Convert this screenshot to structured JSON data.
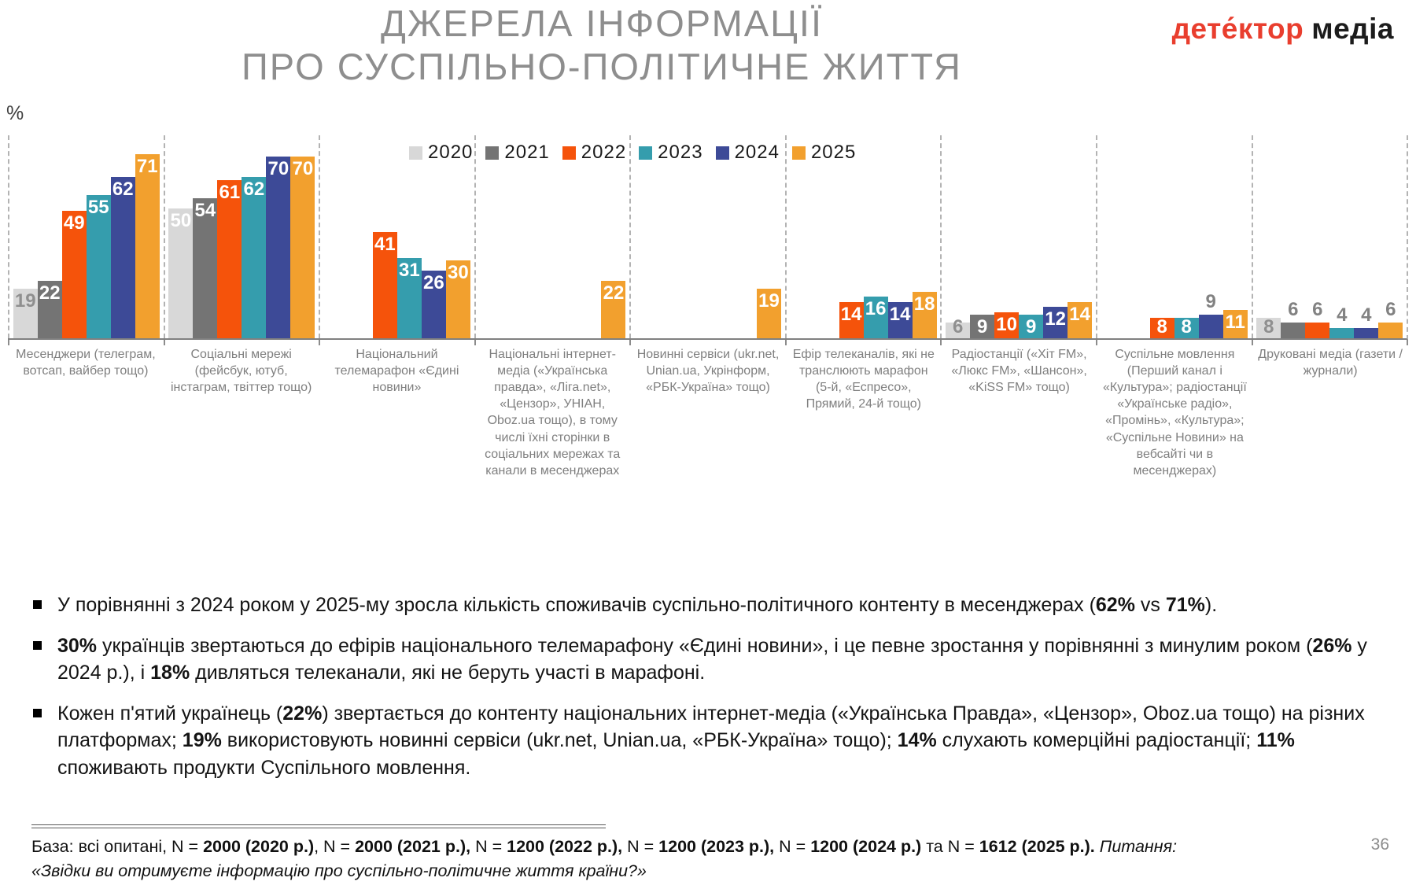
{
  "title": {
    "line1": "ДЖЕРЕЛА ІНФОРМАЦІЇ",
    "line2": "ПРО СУСПІЛЬНО-ПОЛІТИЧНЕ ЖИТТЯ"
  },
  "logo": {
    "part1": "дете́ктор",
    "part2": "медіа",
    "accent_color": "#e93e2e"
  },
  "axis": {
    "percent_label": "%"
  },
  "chart_data": {
    "type": "bar",
    "unit": "%",
    "ylim": [
      0,
      78
    ],
    "legend_position": "top-center",
    "series": [
      {
        "year": "2020",
        "color": "#D8D8D8"
      },
      {
        "year": "2021",
        "color": "#747474"
      },
      {
        "year": "2022",
        "color": "#F5530B"
      },
      {
        "year": "2023",
        "color": "#359DAD"
      },
      {
        "year": "2024",
        "color": "#3D4A97"
      },
      {
        "year": "2025",
        "color": "#F2A02E"
      }
    ],
    "groups": [
      {
        "category": "Месенджери (телеграм, вотсап, вайбер тощо)",
        "values": [
          19,
          22,
          49,
          55,
          62,
          71
        ],
        "styles": [
          "ig",
          "iw",
          "iw",
          "iw",
          "iw",
          "iw"
        ]
      },
      {
        "category": "Соціальні мережі (фейсбук, ютуб, інстаграм, твіттер тощо)",
        "values": [
          50,
          54,
          61,
          62,
          70,
          70
        ],
        "styles": [
          "iw",
          "iw",
          "iw",
          "iw",
          "iw",
          "iw"
        ]
      },
      {
        "category": "Національний телемарафон «Єдині новини»",
        "values": [
          null,
          null,
          41,
          31,
          26,
          30
        ],
        "styles": [
          null,
          null,
          "iw",
          "iw",
          "iw",
          "iw"
        ]
      },
      {
        "category": "Національні інтернет-медіа («Українська правда», «Ліга.net», «Цензор», УНІАН, Oboz.ua тощо), в тому числі їхні сторінки в соціальних мережах та канали в месенджерах",
        "values": [
          null,
          null,
          null,
          null,
          null,
          22
        ],
        "styles": [
          null,
          null,
          null,
          null,
          null,
          "iw"
        ]
      },
      {
        "category": "Новинні сервіси (ukr.net, Unian.ua, Укрінформ, «РБК-Україна» тощо)",
        "values": [
          null,
          null,
          null,
          null,
          null,
          19
        ],
        "styles": [
          null,
          null,
          null,
          null,
          null,
          "iw"
        ]
      },
      {
        "category": "Ефір телеканалів, які не транслюють марафон (5-й, «Еспресо», Прямий, 24-й тощо)",
        "values": [
          null,
          null,
          14,
          16,
          14,
          18
        ],
        "styles": [
          null,
          null,
          "iw",
          "iw",
          "iw",
          "iw"
        ]
      },
      {
        "category": "Радіостанції («Хіт FM», «Люкс FM», «Шансон», «KiSS FM» тощо)",
        "values": [
          6,
          9,
          10,
          9,
          12,
          14
        ],
        "styles": [
          "ig",
          "iw",
          "iw",
          "iw",
          "iw",
          "iw"
        ]
      },
      {
        "category": "Суспільне мовлення (Перший канал і «Культура»; радіостанції «Українське радіо», «Промінь», «Культура»; «Суспільне Новини» на вебсайті чи в месенджерах)",
        "values": [
          null,
          null,
          8,
          8,
          9,
          11
        ],
        "styles": [
          null,
          null,
          "iw",
          "iw",
          "og",
          "iw"
        ]
      },
      {
        "category": "Друковані медіа (газети / журнали)",
        "values": [
          8,
          6,
          6,
          4,
          4,
          6
        ],
        "styles": [
          "ig",
          "og",
          "og",
          "og",
          "og",
          "og"
        ]
      }
    ]
  },
  "bullets": [
    {
      "segments": [
        {
          "t": "У порівнянні з 2024 роком у 2025-му зросла кількість споживачів суспільно-політичного контенту в месенджерах ("
        },
        {
          "t": "62%",
          "b": true
        },
        {
          "t": " vs "
        },
        {
          "t": "71%",
          "b": true
        },
        {
          "t": ")."
        }
      ]
    },
    {
      "segments": [
        {
          "t": "30%",
          "b": true
        },
        {
          "t": " українців звертаються до ефірів національного телемарафону «Єдині новини», і це певне зростання у порівнянні з минулим роком ("
        },
        {
          "t": "26%",
          "b": true
        },
        {
          "t": " у 2024 р.), і "
        },
        {
          "t": "18%",
          "b": true
        },
        {
          "t": " дивляться телеканали, які не беруть участі в марафоні."
        }
      ]
    },
    {
      "segments": [
        {
          "t": "Кожен п'ятий українець ("
        },
        {
          "t": "22%",
          "b": true
        },
        {
          "t": ") звертається до контенту національних інтернет-медіа («Українська Правда», «Цензор», Oboz.ua тощо) на різних платформах; "
        },
        {
          "t": "19%",
          "b": true
        },
        {
          "t": " використовують новинні сервіси (ukr.net, Unian.ua, «РБК-Україна» тощо); "
        },
        {
          "t": "14%",
          "b": true
        },
        {
          "t": " слухають комерційні радіостанції; "
        },
        {
          "t": "11%",
          "b": true
        },
        {
          "t": " споживають продукти Суспільного мовлення."
        }
      ]
    }
  ],
  "footer": {
    "segments": [
      {
        "t": "База: всі опитані, N = "
      },
      {
        "t": "2000 (2020 р.)",
        "b": true
      },
      {
        "t": ", N = "
      },
      {
        "t": "2000 (2021 р.),",
        "b": true
      },
      {
        "t": " N = "
      },
      {
        "t": "1200 (2022 р.),",
        "b": true
      },
      {
        "t": " N = "
      },
      {
        "t": "1200 (2023 р.),",
        "b": true
      },
      {
        "t": " N = "
      },
      {
        "t": "1200 (2024 р.)",
        "b": true
      },
      {
        "t": " та N = "
      },
      {
        "t": "1612 (2025 р.).",
        "b": true
      },
      {
        "t": " Питання: ",
        "i": true
      },
      {
        "t": "«Звідки ви отримуєте інформацію про суспільно-політичне життя країни?»",
        "i": true
      }
    ]
  },
  "page_number": "36"
}
